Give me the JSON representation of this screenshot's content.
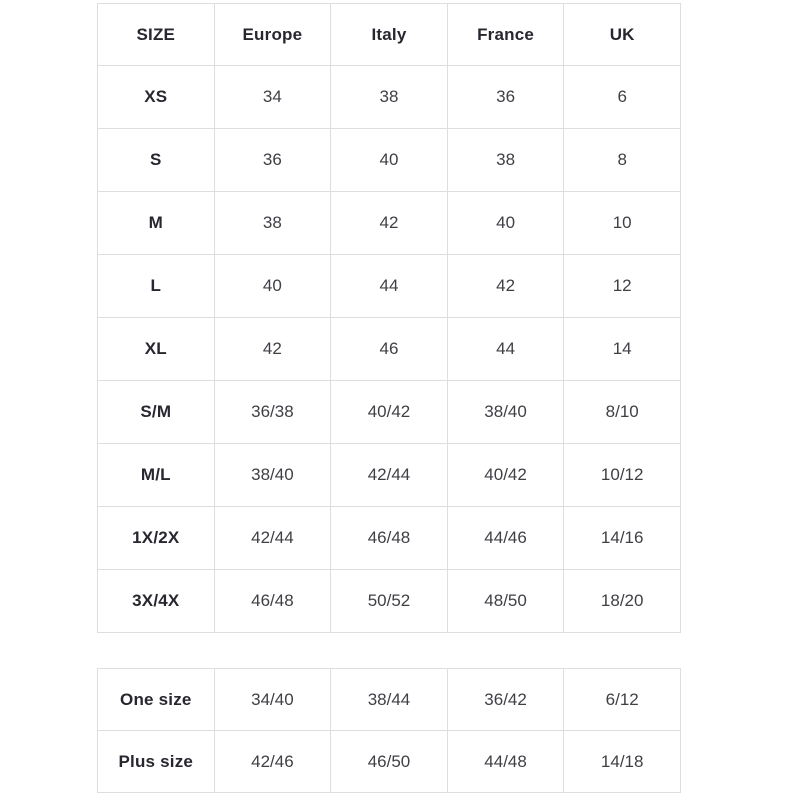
{
  "colors": {
    "background": "#ffffff",
    "border": "#dedede",
    "header_text": "#27272f",
    "cell_text": "#3f3f46"
  },
  "main_table": {
    "headers": [
      "SIZE",
      "Europe",
      "Italy",
      "France",
      "UK"
    ],
    "rows": [
      {
        "size": "XS",
        "values": [
          "34",
          "38",
          "36",
          "6"
        ]
      },
      {
        "size": "S",
        "values": [
          "36",
          "40",
          "38",
          "8"
        ]
      },
      {
        "size": "M",
        "values": [
          "38",
          "42",
          "40",
          "10"
        ]
      },
      {
        "size": "L",
        "values": [
          "40",
          "44",
          "42",
          "12"
        ]
      },
      {
        "size": "XL",
        "values": [
          "42",
          "46",
          "44",
          "14"
        ]
      },
      {
        "size": "S/M",
        "values": [
          "36/38",
          "40/42",
          "38/40",
          "8/10"
        ]
      },
      {
        "size": "M/L",
        "values": [
          "38/40",
          "42/44",
          "40/42",
          "10/12"
        ]
      },
      {
        "size": "1X/2X",
        "values": [
          "42/44",
          "46/48",
          "44/46",
          "14/16"
        ]
      },
      {
        "size": "3X/4X",
        "values": [
          "46/48",
          "50/52",
          "48/50",
          "18/20"
        ]
      }
    ]
  },
  "special_table": {
    "rows": [
      {
        "size": "One size",
        "values": [
          "34/40",
          "38/44",
          "36/42",
          "6/12"
        ]
      },
      {
        "size": "Plus size",
        "values": [
          "42/46",
          "46/50",
          "44/48",
          "14/18"
        ]
      }
    ]
  }
}
